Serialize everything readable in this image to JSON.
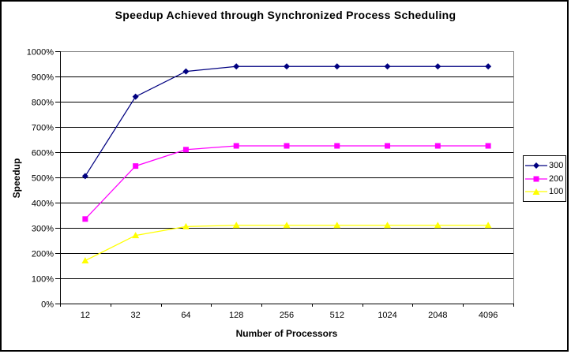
{
  "window": {
    "background": "#FFFFFF",
    "frame_border_color": "#000000"
  },
  "chart_data": {
    "type": "line",
    "title": "Speedup Achieved through Synchronized Process Scheduling",
    "xlabel": "Number of Processors",
    "ylabel": "Speedup",
    "categories": [
      "12",
      "32",
      "64",
      "128",
      "256",
      "512",
      "1024",
      "2048",
      "4096"
    ],
    "y_axis": {
      "min": 0,
      "max": 1000,
      "step": 100,
      "unit": "%",
      "tick_labels": [
        "0%",
        "100%",
        "200%",
        "300%",
        "400%",
        "500%",
        "600%",
        "700%",
        "800%",
        "900%",
        "1000%"
      ]
    },
    "series": [
      {
        "name": "300",
        "color": "#000080",
        "marker": "diamond",
        "values": [
          505,
          820,
          920,
          940,
          940,
          940,
          940,
          940,
          940
        ]
      },
      {
        "name": "200",
        "color": "#FF00FF",
        "marker": "square",
        "values": [
          335,
          545,
          610,
          625,
          625,
          625,
          625,
          625,
          625
        ]
      },
      {
        "name": "100",
        "color": "#FFFF00",
        "marker": "triangle",
        "values": [
          170,
          270,
          305,
          310,
          310,
          310,
          310,
          310,
          310
        ]
      }
    ],
    "legend": {
      "position": "right",
      "entries": [
        "300",
        "200",
        "100"
      ]
    },
    "grid": true,
    "plot_colors": {
      "gridline": "#000000",
      "plot_border": "#808080",
      "axis": "#000000",
      "background": "#FFFFFF",
      "tick_text": "#000000"
    }
  }
}
